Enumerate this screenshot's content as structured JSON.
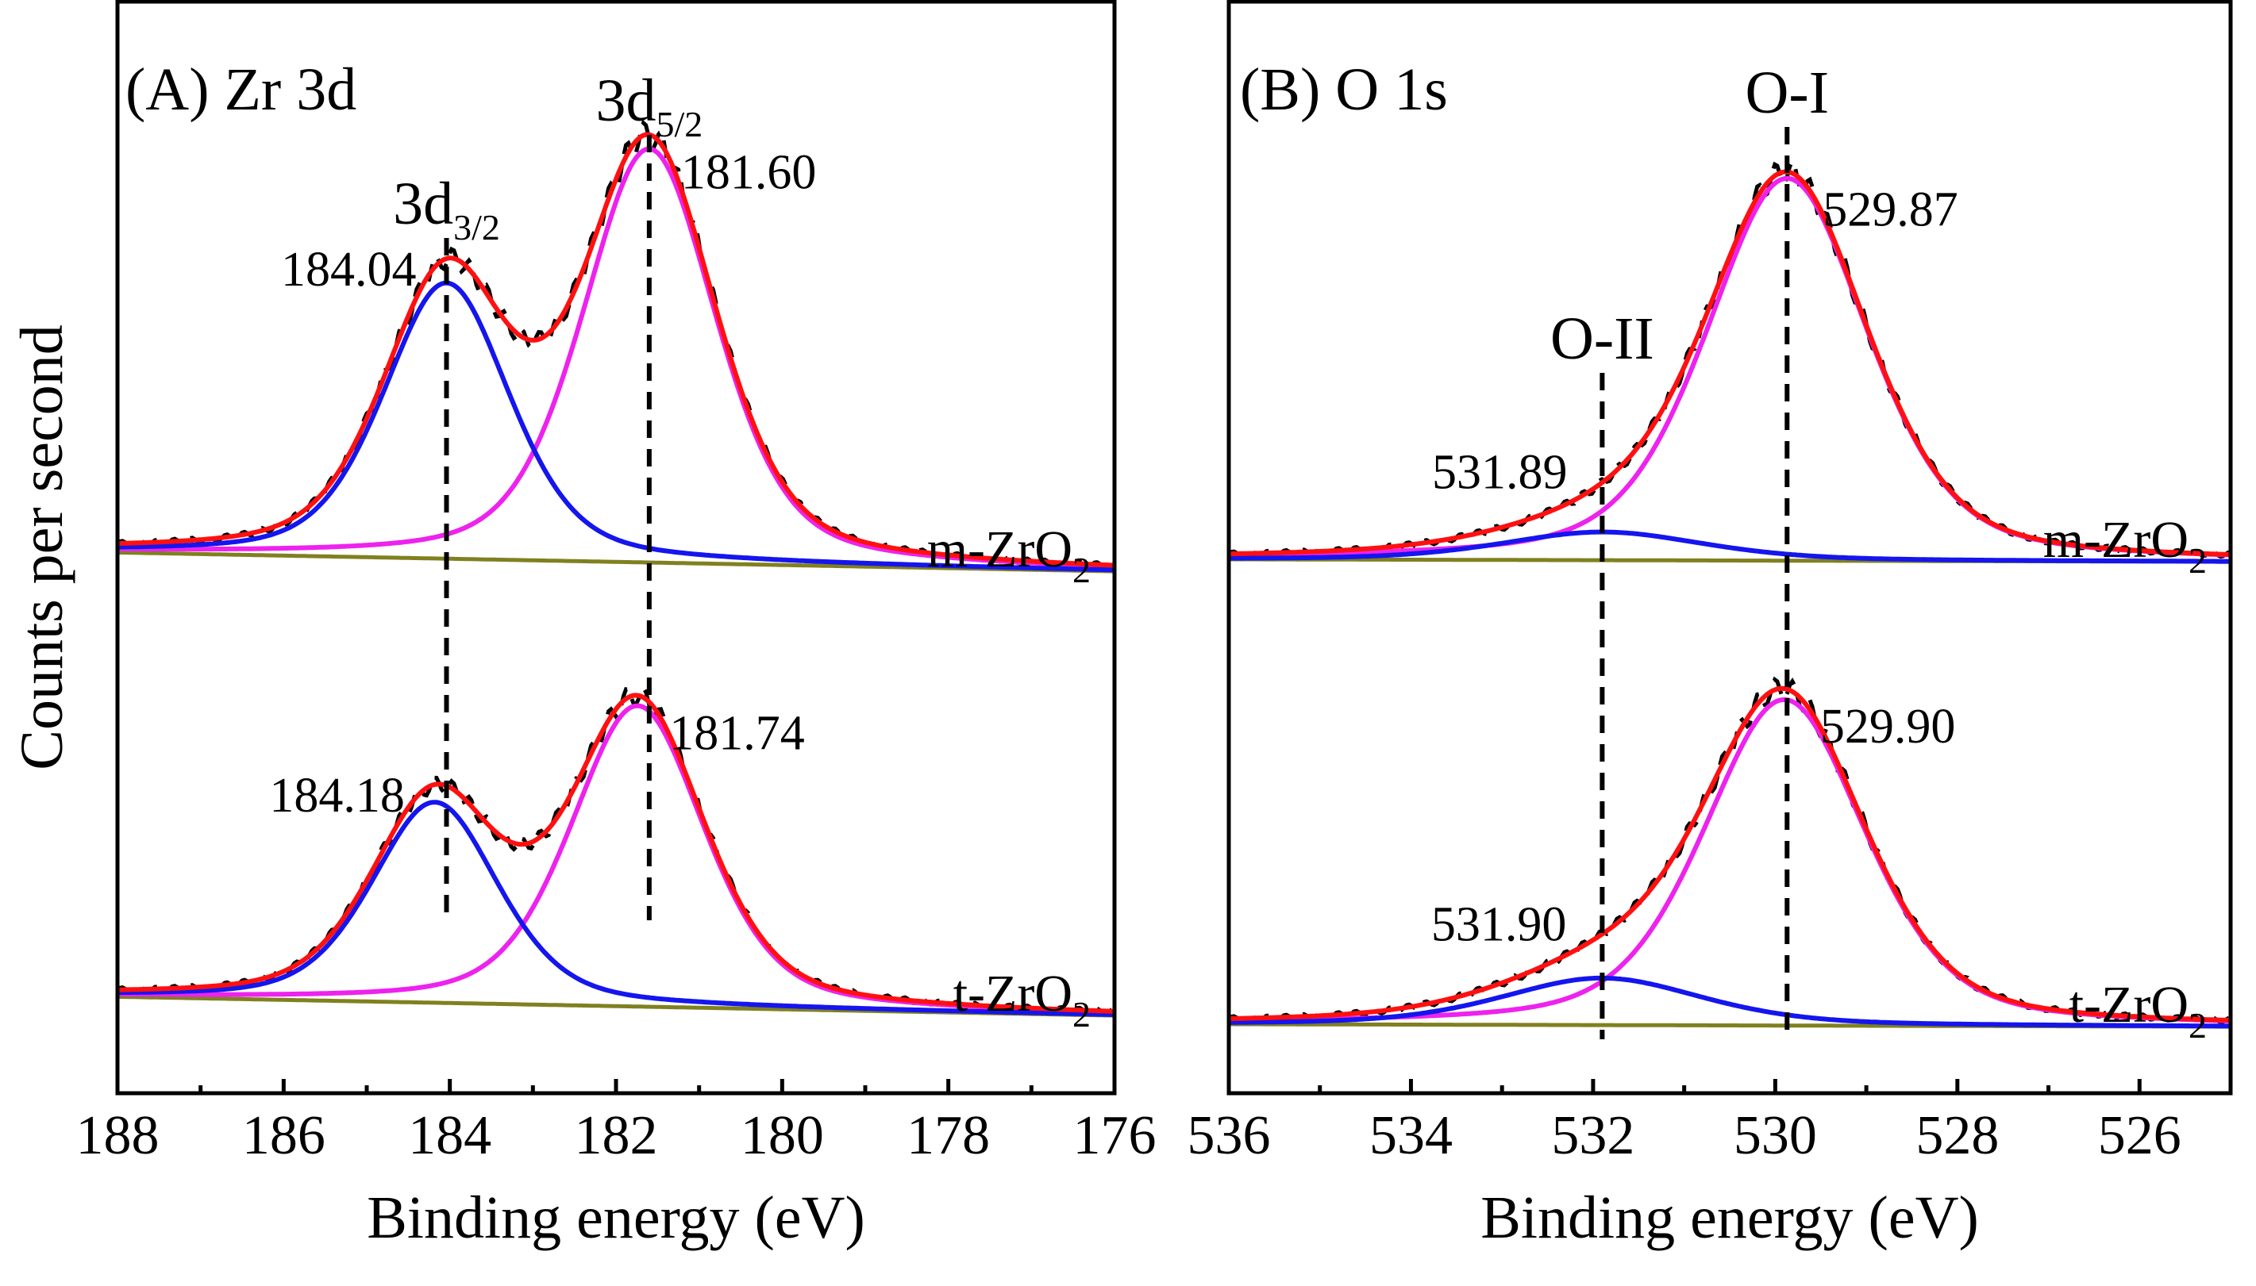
{
  "figure": {
    "y_axis_title": "Counts per second"
  },
  "chart_data": [
    {
      "type": "line",
      "panel": "A",
      "title": "(A) Zr 3d",
      "xlabel": "Binding energy (eV)",
      "ylabel": "Counts per second",
      "xlim": [
        188,
        176
      ],
      "x_reversed": true,
      "x_ticks": [
        188,
        186,
        184,
        182,
        180,
        178,
        176
      ],
      "y_units": "arbitrary (stacked spectra, no tick labels)",
      "series_colors": {
        "raw_data": "#000000",
        "envelope": "#ff1010",
        "component_1": "#1515ee",
        "component_2": "#ee22ee",
        "background": "#808020"
      },
      "peak_markers": [
        {
          "label_main": "3d",
          "label_sub": "3/2",
          "x": 184.04
        },
        {
          "label_main": "3d",
          "label_sub": "5/2",
          "x": 181.6
        }
      ],
      "samples": [
        {
          "name_main": "m-ZrO",
          "name_sub": "2",
          "position": "top",
          "baseline": 0.25,
          "bg_drop": 0.03,
          "peaks": [
            {
              "label": "184.04",
              "center": 184.04,
              "height": 0.44,
              "width": 0.9
            },
            {
              "label": "181.60",
              "center": 181.6,
              "height": 0.66,
              "width": 0.95
            }
          ]
        },
        {
          "name_main": "t-ZrO",
          "name_sub": "2",
          "position": "bottom",
          "baseline": 0.0,
          "bg_drop": 0.03,
          "peaks": [
            {
              "label": "184.18",
              "center": 184.18,
              "height": 0.32,
              "width": 0.9
            },
            {
              "label": "181.74",
              "center": 181.74,
              "height": 0.48,
              "width": 0.95
            }
          ]
        }
      ]
    },
    {
      "type": "line",
      "panel": "B",
      "title": "(B) O 1s",
      "xlabel": "Binding energy (eV)",
      "ylabel": "Counts per second",
      "xlim": [
        536,
        525
      ],
      "x_reversed": true,
      "x_ticks": [
        536,
        534,
        532,
        530,
        528,
        526
      ],
      "y_units": "arbitrary (stacked spectra, no tick labels)",
      "series_colors": {
        "raw_data": "#000000",
        "envelope": "#ff1010",
        "component_1": "#1515ee",
        "component_2": "#ee22ee",
        "background": "#808020"
      },
      "peak_markers": [
        {
          "label_main": "O-II",
          "label_sub": "",
          "x": 531.9
        },
        {
          "label_main": "O-I",
          "label_sub": "",
          "x": 529.87
        }
      ],
      "samples": [
        {
          "name_main": "m-ZrO",
          "name_sub": "2",
          "position": "top",
          "baseline": 0.25,
          "bg_drop": 0.004,
          "peaks": [
            {
              "label": "531.89",
              "center": 531.89,
              "height": 0.045,
              "width": 1.3
            },
            {
              "label": "529.87",
              "center": 529.87,
              "height": 0.61,
              "width": 1.05
            }
          ]
        },
        {
          "name_main": "t-ZrO",
          "name_sub": "2",
          "position": "bottom",
          "baseline": 0.0,
          "bg_drop": 0.004,
          "peaks": [
            {
              "label": "531.90",
              "center": 531.9,
              "height": 0.075,
              "width": 1.3
            },
            {
              "label": "529.90",
              "center": 529.9,
              "height": 0.52,
              "width": 1.05
            }
          ]
        }
      ]
    }
  ]
}
